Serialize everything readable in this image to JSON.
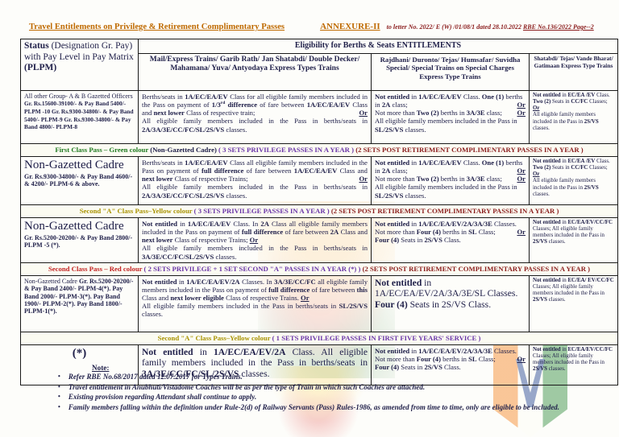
{
  "colors": {
    "ink": "#20204a",
    "orange": "#bf6a00",
    "maroon": "#8b1d1d",
    "purple": "#6a35a8",
    "green": "#1f7a1f",
    "olive": "#a89200",
    "red": "#c22222"
  },
  "header": {
    "title": "Travel Entitlements on Privilege & Retirement Complimentary Passes",
    "annexure": "ANNEXURE-II",
    "ref": [
      {
        "t": "to letter No. 2022/ E (W) /01/08/1 dated 28.10.2022 "
      },
      {
        "t": "RBE No.136/2022 Page--2",
        "u": true
      }
    ]
  },
  "table": {
    "corner": [
      {
        "t": "Status ",
        "b": true
      },
      {
        "t": "(Designation Gr. Pay) with Pay Level in Pay Matrix "
      },
      {
        "t": "(PLPM)",
        "b": true
      }
    ],
    "eligibility_header": "Eligibility for Berths & Seats ENTITLEMENTS",
    "column_headers": [
      "Mail/Express Trains/ Garib Rath/ Jan Shatabdi/ Double Decker/ Mahamana/ Yuva/ Antyodaya Express Types Trains",
      "Rajdhani/ Duronto/ Tejas/ Humsafar/ Suvidha Special/ Special Trains on Special Charges Express Type Trains",
      "Shatabdi/ Tejas/ Vande Bharat/ Gatimaan Express Type Trains"
    ],
    "rows": [
      {
        "type": "data",
        "status": [
          {
            "t": "All other Group- A & B Gazetted Officers "
          },
          {
            "t": "Gr. Rs.15600-39100/- & Pay Band 5400/- PLPM -10 Gr. Rs.9300-34800/- & Pay Band 5400/- PLPM-9 Gr. Rs.9300-34800/- & Pay Band 4800/- PLPM-8",
            "b": true,
            "sm": true
          }
        ],
        "c2": [
          {
            "t": "Berths/seats in "
          },
          {
            "t": "1A/EC/EA/EV",
            "b": true
          },
          {
            "t": " Class for all eligible family members included in the Pass on payment of "
          },
          {
            "t": "1/3",
            "b": true
          },
          {
            "t": "rd",
            "b": true,
            "sup": true
          },
          {
            "t": " difference",
            "b": true
          },
          {
            "t": " of fare between "
          },
          {
            "t": "1A/EC/EA/EV",
            "b": true
          },
          {
            "t": " Class and "
          },
          {
            "t": "next lower",
            "b": true
          },
          {
            "t": " Class of respective train; "
          },
          {
            "t": "Or",
            "b": true,
            "u": true,
            "r": true
          },
          {
            "br": true
          },
          {
            "t": "All eligible family members included in the Pass in berths/seats in "
          },
          {
            "t": "2A/3A/3E/CC/FC/SL/2S/VS",
            "b": true
          },
          {
            "t": " classes."
          }
        ],
        "c3": [
          {
            "t": "Not entitled",
            "b": true
          },
          {
            "t": " in "
          },
          {
            "t": "1A/EC/EA/EV",
            "b": true
          },
          {
            "t": " Class. "
          },
          {
            "t": "One (1)",
            "b": true
          },
          {
            "t": " berths in "
          },
          {
            "t": "2A",
            "b": true
          },
          {
            "t": " class; "
          },
          {
            "t": "Or",
            "b": true,
            "u": true,
            "r": true
          },
          {
            "br": true
          },
          {
            "t": "Not more than "
          },
          {
            "t": "Two (2)",
            "b": true
          },
          {
            "t": " berths in "
          },
          {
            "t": "3A/3E",
            "b": true
          },
          {
            "t": " class; "
          },
          {
            "t": "Or",
            "b": true,
            "u": true,
            "r": true
          },
          {
            "br": true
          },
          {
            "t": "All eligible family members included in the Pass in "
          },
          {
            "t": "SL/2S/VS",
            "b": true
          },
          {
            "t": " classes."
          }
        ],
        "c4": [
          {
            "t": "Not entitled",
            "b": true
          },
          {
            "t": " in "
          },
          {
            "t": "EC/EA /EV",
            "b": true
          },
          {
            "t": " Class."
          },
          {
            "br": true
          },
          {
            "t": "Two (2)",
            "b": true
          },
          {
            "t": " Seats in "
          },
          {
            "t": "CC/FC",
            "b": true
          },
          {
            "t": " Classes; "
          },
          {
            "t": "Or",
            "b": true,
            "u": true
          },
          {
            "br": true
          },
          {
            "t": "All eligible family members included in the Pass in "
          },
          {
            "t": "2S/VS",
            "b": true
          },
          {
            "t": " classes."
          }
        ]
      },
      {
        "type": "banner",
        "segments": [
          {
            "t": "First Class Pass – Green colour ",
            "c": "green"
          },
          {
            "t": "(Non-Gazetted Cadre) "
          },
          {
            "t": "( 3 SETS PRIVILEGE PASSES IN A YEAR ) ",
            "c": "purple"
          },
          {
            "t": "(2 SETS POST RETIREMENT COMPLIMENTARY PASSES  IN A YEAR )",
            "c": "maroon"
          }
        ]
      },
      {
        "type": "data",
        "status": [
          {
            "t": "Non-Gazetted Cadre",
            "lg": true
          },
          {
            "br": true
          },
          {
            "t": "Gr. Rs.9300-34800/- & Pay Band 4600/- & 4200/- PLPM-6 & above.",
            "b": true
          }
        ],
        "c2": [
          {
            "t": "Berths/seats in "
          },
          {
            "t": "1A/EC/EA/EV",
            "b": true
          },
          {
            "t": " Class all eligible family members included in the Pass on payment of "
          },
          {
            "t": "full difference",
            "b": true
          },
          {
            "t": " of fare between "
          },
          {
            "t": "1A/EC/EA/EV",
            "b": true
          },
          {
            "t": " Class and "
          },
          {
            "t": "next lower",
            "b": true
          },
          {
            "t": " Class of respective Trains; "
          },
          {
            "t": "Or",
            "b": true,
            "u": true,
            "r": true
          },
          {
            "br": true
          },
          {
            "t": "All eligible family members included in the Pass in berths/seats in "
          },
          {
            "t": "2A/3A/3E/CC/FC/SL/2S/VS",
            "b": true
          },
          {
            "t": " classes."
          }
        ],
        "c3": [
          {
            "t": "Not entitled",
            "b": true
          },
          {
            "t": " in "
          },
          {
            "t": "1A/EC/EA/EV",
            "b": true
          },
          {
            "t": " Class. "
          },
          {
            "t": "One (1)",
            "b": true
          },
          {
            "t": " berths in "
          },
          {
            "t": "2A",
            "b": true
          },
          {
            "t": " class; "
          },
          {
            "t": "Or",
            "b": true,
            "u": true,
            "r": true
          },
          {
            "br": true
          },
          {
            "t": "Not more than "
          },
          {
            "t": "Two (2)",
            "b": true
          },
          {
            "t": " berths in "
          },
          {
            "t": "3A/3E",
            "b": true
          },
          {
            "t": " class; "
          },
          {
            "t": "Or",
            "b": true,
            "u": true,
            "r": true
          },
          {
            "br": true
          },
          {
            "t": "All eligible family members included in the Pass in "
          },
          {
            "t": "SL/2S/VS",
            "b": true
          },
          {
            "t": " classes."
          }
        ],
        "c4": [
          {
            "t": "Not entitled",
            "b": true
          },
          {
            "t": " in "
          },
          {
            "t": "EC/EA /EV",
            "b": true
          },
          {
            "t": " Class."
          },
          {
            "br": true
          },
          {
            "t": "Two (2)",
            "b": true
          },
          {
            "t": " Seats in "
          },
          {
            "t": "CC/FC",
            "b": true
          },
          {
            "t": " Classes; "
          },
          {
            "t": "Or",
            "b": true,
            "u": true
          },
          {
            "br": true
          },
          {
            "t": "All eligible family members included in the Pass in "
          },
          {
            "t": "2S/VS",
            "b": true
          },
          {
            "t": " classes."
          }
        ]
      },
      {
        "type": "banner",
        "segments": [
          {
            "t": "Second \"A\" Class Pass–Yellow colour ",
            "c": "olive"
          },
          {
            "t": "( 3 SETS PRIVILEGE PASSES IN A YEAR ) ",
            "c": "purple"
          },
          {
            "t": "(2 SETS POST RETIREMENT COMPLIMENTARY PASSES  IN A YEAR )",
            "c": "maroon"
          }
        ]
      },
      {
        "type": "data",
        "status": [
          {
            "t": "Non-Gazetted Cadre",
            "lg": true
          },
          {
            "br": true
          },
          {
            "t": "Gr. Rs.5200-20200/- & Pay Band 2800/- PLPM -5 (*).",
            "b": true
          }
        ],
        "c2": [
          {
            "t": "Not entitled",
            "b": true
          },
          {
            "t": " in "
          },
          {
            "t": "1A/EC/EA/EV",
            "b": true
          },
          {
            "t": " Class. In "
          },
          {
            "t": "2A",
            "b": true
          },
          {
            "t": " Class all eligible family members included in the Pass on payment of "
          },
          {
            "t": "full difference",
            "b": true
          },
          {
            "t": " of fare between "
          },
          {
            "t": "2A",
            "b": true
          },
          {
            "t": " Class and "
          },
          {
            "t": "next lower",
            "b": true
          },
          {
            "t": " Class of respective Trains; "
          },
          {
            "t": "Or",
            "b": true,
            "u": true
          },
          {
            "br": true
          },
          {
            "t": "All eligible family members included in the Pass in berths/seats in "
          },
          {
            "t": "3A/3E/CC/FC/SL/2S/VS",
            "b": true
          },
          {
            "t": " classes."
          }
        ],
        "c3": [
          {
            "t": "Not entitled",
            "b": true
          },
          {
            "t": " in "
          },
          {
            "t": "1A/EC/EA/EV/2A/3A/3E",
            "b": true
          },
          {
            "t": " Classes. Not more than "
          },
          {
            "t": "Four (4)",
            "b": true
          },
          {
            "t": " berths in "
          },
          {
            "t": "SL",
            "b": true
          },
          {
            "t": " Class; "
          },
          {
            "t": "Or",
            "b": true,
            "u": true,
            "r": true
          },
          {
            "br": true
          },
          {
            "t": "Four (4)",
            "b": true
          },
          {
            "t": " Seats in "
          },
          {
            "t": "2S/VS",
            "b": true
          },
          {
            "t": " Class."
          }
        ],
        "c4": [
          {
            "t": "Not entitled",
            "b": true
          },
          {
            "t": " in "
          },
          {
            "t": "EC/EA/EV/CC/FC",
            "b": true
          },
          {
            "t": " Classes; All eligible family members included in the Pass in "
          },
          {
            "t": "2S/VS",
            "b": true
          },
          {
            "t": " classes."
          }
        ]
      },
      {
        "type": "banner",
        "segments": [
          {
            "t": "Second Class Pass – Red colour ",
            "c": "red"
          },
          {
            "t": "( 2 SETS PRIVILEGE + 1 SET  SECOND \"A\"   PASSES IN A YEAR (*) ) ",
            "c": "purple"
          },
          {
            "t": "(2 SETS POST RETIREMENT COMPLIMENTARY PASSES  IN A YEAR )",
            "c": "maroon"
          }
        ]
      },
      {
        "type": "data",
        "status": [
          {
            "t": "Non-Gazetted Cadre "
          },
          {
            "t": "Gr. Rs.5200-20200/- & Pay Band 2400/- PLPM-4(*). Pay Band 2000/- PLPM-3(*). Pay Band 1900/- PLPM-2(*). Pay Band 1800/- PLPM-1(*).",
            "b": true
          }
        ],
        "c2": [
          {
            "t": "Not entitled",
            "b": true
          },
          {
            "t": " in "
          },
          {
            "t": "1A/EC/EA/EV/2A",
            "b": true
          },
          {
            "t": " Classes. In "
          },
          {
            "t": "3A/3E/CC/FC",
            "b": true
          },
          {
            "t": " all eligible family members included in the Pass on payment of "
          },
          {
            "t": "full difference",
            "b": true
          },
          {
            "t": " of fare between "
          },
          {
            "t": "this",
            "b": true
          },
          {
            "t": " Class and "
          },
          {
            "t": "next lower eligible",
            "b": true
          },
          {
            "t": " Class of respective Trains. "
          },
          {
            "t": "Or",
            "b": true,
            "u": true
          },
          {
            "br": true
          },
          {
            "t": "All eligible family members included in the Pass in berths/seats in "
          },
          {
            "t": "SL/2S/VS",
            "b": true
          },
          {
            "t": " classes."
          }
        ],
        "c3": [
          {
            "t": "Not entitled",
            "b": true
          },
          {
            "t": " in "
          },
          {
            "t": "1A/EC/EA/EV/2A/3A/3E/SL"
          },
          {
            "t": " Classes. "
          },
          {
            "t": "Four (4)",
            "b": true
          },
          {
            "t": " Seats in "
          },
          {
            "t": "2S/VS"
          },
          {
            "t": " Class."
          }
        ],
        "c4": [
          {
            "t": "Not entitled",
            "b": true
          },
          {
            "t": " in "
          },
          {
            "t": "EC/EA/ EV/CC/FC",
            "b": true
          },
          {
            "t": " Classes; All eligible family members included in the Pass in "
          },
          {
            "t": "2S/VS",
            "b": true
          },
          {
            "t": " classes."
          }
        ]
      },
      {
        "type": "banner",
        "segments": [
          {
            "t": "Second \"A\" Class Pass–Yellow colour ",
            "c": "olive"
          },
          {
            "t": "( 1 SETS PRIVILEGE PASSES IN FIRST FIVE YEARS' SERVICE )",
            "c": "purple"
          }
        ]
      },
      {
        "type": "data",
        "status": [
          {
            "t": "(*)",
            "lg": true,
            "b": true
          }
        ],
        "c2": [
          {
            "t": "Not entitled",
            "b": true
          },
          {
            "t": " in "
          },
          {
            "t": "1A/EC/EA/EV/2A",
            "b": true
          },
          {
            "t": " Class. All eligible family members included in the Pass in berths/seats in "
          },
          {
            "t": "3A/3E/CC/FC/SL/2S/VS",
            "b": true
          },
          {
            "t": " classes."
          }
        ],
        "c3": [
          {
            "t": "Not entitled",
            "b": true
          },
          {
            "t": " in "
          },
          {
            "t": "1A/EC/EA/EV/2A/3A/3E",
            "b": true
          },
          {
            "t": " Classes. Not more than "
          },
          {
            "t": "Four (4)",
            "b": true
          },
          {
            "t": " berths in "
          },
          {
            "t": "SL",
            "b": true
          },
          {
            "t": " Class; "
          },
          {
            "t": "Or",
            "b": true,
            "u": true,
            "r": true
          },
          {
            "br": true
          },
          {
            "t": "Four (4)",
            "b": true
          },
          {
            "t": " Seats in "
          },
          {
            "t": "2S/VS",
            "b": true
          },
          {
            "t": " Class."
          }
        ],
        "c4": [
          {
            "t": "Not entitled",
            "b": true
          },
          {
            "t": " in "
          },
          {
            "t": "EC/EA/EV/CC/FC",
            "b": true
          },
          {
            "t": " Classes; All eligible family members included in the Pass in "
          },
          {
            "t": "2S/VS",
            "b": true
          },
          {
            "t": " classes."
          }
        ]
      }
    ]
  },
  "notes": {
    "heading": "Note:",
    "bullet": "•",
    "items": [
      "Refer RBE No.68/2017 dated 12.07.2017 for Types Trains.",
      "Travel entitlement in Anubhuti/Vistadome Coaches will be as per the type of Train in which such Coaches are attached.",
      "Existing provision regarding Attendant shall continue to apply.",
      "Family members falling within the definition under Rule-2(d) of Railway Servants (Pass) Rules-1986, as amended from time to time, only are eligible to be included."
    ]
  }
}
